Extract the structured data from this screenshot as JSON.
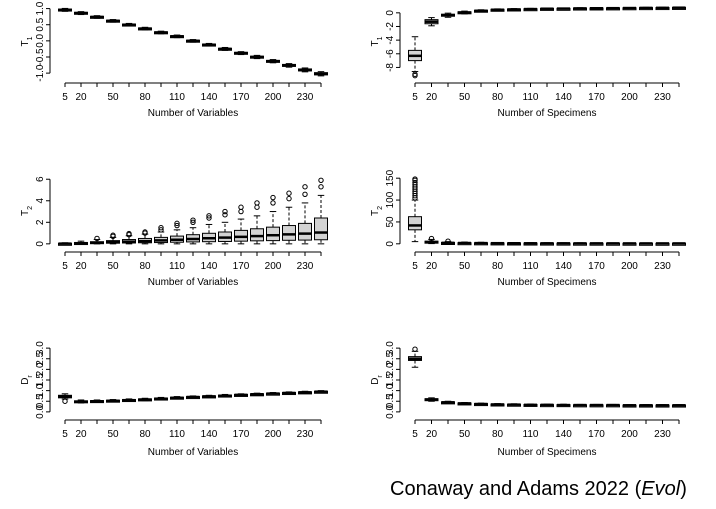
{
  "caption": {
    "text": "Conaway and Adams 2022 (",
    "journal": "Evol",
    "close": ")"
  },
  "colors": {
    "box_fill": "#d3d3d3",
    "ink": "#000000",
    "background": "#ffffff"
  },
  "chart_data": [
    {
      "id": "t1-variables",
      "type": "boxplot",
      "xlabel": "Number of Variables",
      "ylabel": "T1",
      "x_tick_labels": [
        "5",
        "20",
        "50",
        "80",
        "110",
        "140",
        "170",
        "200",
        "230"
      ],
      "x_tick_positions": [
        5,
        20,
        50,
        80,
        110,
        140,
        170,
        200,
        230
      ],
      "y_ticks": [
        "1.0",
        "0.5",
        "0.0",
        "-0.5",
        "-1.0"
      ],
      "y_tick_values": [
        1.0,
        0.5,
        0.0,
        -0.5,
        -1.0
      ],
      "ylim": [
        -1.12,
        1.08
      ],
      "categories": [
        5,
        20,
        35,
        50,
        65,
        80,
        95,
        110,
        125,
        140,
        155,
        170,
        185,
        200,
        215,
        230,
        245
      ],
      "medians": [
        0.96,
        0.86,
        0.74,
        0.62,
        0.5,
        0.38,
        0.26,
        0.14,
        0.0,
        -0.12,
        -0.25,
        -0.38,
        -0.5,
        -0.63,
        -0.76,
        -0.9,
        -1.02
      ],
      "box_half_height": [
        0.025,
        0.025,
        0.02,
        0.02,
        0.02,
        0.02,
        0.02,
        0.02,
        0.02,
        0.02,
        0.02,
        0.025,
        0.025,
        0.025,
        0.03,
        0.03,
        0.035
      ],
      "whisker_half_height": [
        0.045,
        0.045,
        0.04,
        0.04,
        0.04,
        0.04,
        0.04,
        0.04,
        0.04,
        0.04,
        0.045,
        0.045,
        0.05,
        0.05,
        0.055,
        0.06,
        0.065
      ]
    },
    {
      "id": "t1-specimens",
      "type": "boxplot",
      "xlabel": "Number of Specimens",
      "ylabel": "T1",
      "x_tick_labels": [
        "5",
        "20",
        "50",
        "80",
        "110",
        "140",
        "170",
        "200",
        "230"
      ],
      "x_tick_positions": [
        5,
        20,
        50,
        80,
        110,
        140,
        170,
        200,
        230
      ],
      "y_ticks": [
        "0",
        "-2",
        "-4",
        "-6",
        "-8"
      ],
      "y_tick_values": [
        0,
        -2,
        -4,
        -6,
        -8
      ],
      "ylim": [
        -9.4,
        1.0
      ],
      "categories": [
        5,
        20,
        35,
        50,
        65,
        80,
        95,
        110,
        125,
        140,
        155,
        170,
        185,
        200,
        215,
        230,
        245
      ],
      "medians": [
        -6.3,
        -1.3,
        -0.35,
        0.05,
        0.3,
        0.45,
        0.5,
        0.55,
        0.6,
        0.62,
        0.65,
        0.67,
        0.68,
        0.7,
        0.72,
        0.73,
        0.75
      ],
      "q1": [
        -7.0,
        -1.6,
        -0.5,
        -0.05,
        0.22,
        0.38,
        0.44,
        0.5,
        0.55,
        0.58,
        0.6,
        0.63,
        0.64,
        0.66,
        0.68,
        0.69,
        0.71
      ],
      "q3": [
        -5.5,
        -1.0,
        -0.2,
        0.15,
        0.38,
        0.52,
        0.56,
        0.6,
        0.65,
        0.66,
        0.7,
        0.71,
        0.72,
        0.74,
        0.76,
        0.77,
        0.79
      ],
      "whisker_low": [
        -8.6,
        -1.9,
        -0.65,
        -0.15,
        0.15,
        0.32,
        0.38,
        0.45,
        0.5,
        0.54,
        0.56,
        0.59,
        0.6,
        0.62,
        0.64,
        0.65,
        0.67
      ],
      "whisker_high": [
        -3.5,
        -0.7,
        -0.05,
        0.25,
        0.45,
        0.58,
        0.62,
        0.65,
        0.7,
        0.7,
        0.74,
        0.75,
        0.76,
        0.78,
        0.8,
        0.81,
        0.83
      ],
      "outliers_low": [
        [
          -9.0,
          -9.2
        ],
        [],
        [],
        [],
        [],
        [],
        [],
        [],
        [],
        [],
        [],
        [],
        [],
        [],
        [],
        [],
        []
      ]
    },
    {
      "id": "t2-variables",
      "type": "boxplot",
      "xlabel": "Number of Variables",
      "ylabel": "T2",
      "x_tick_labels": [
        "5",
        "20",
        "50",
        "80",
        "110",
        "140",
        "170",
        "200",
        "230"
      ],
      "x_tick_positions": [
        5,
        20,
        50,
        80,
        110,
        140,
        170,
        200,
        230
      ],
      "y_ticks": [
        "0",
        "2",
        "4",
        "6"
      ],
      "y_tick_values": [
        0,
        2,
        4,
        6
      ],
      "ylim": [
        -0.2,
        6.3
      ],
      "categories": [
        5,
        20,
        35,
        50,
        65,
        80,
        95,
        110,
        125,
        140,
        155,
        170,
        185,
        200,
        215,
        230,
        245
      ],
      "medians": [
        0.02,
        0.06,
        0.1,
        0.15,
        0.2,
        0.25,
        0.32,
        0.38,
        0.45,
        0.52,
        0.58,
        0.65,
        0.72,
        0.8,
        0.88,
        0.95,
        1.05
      ],
      "q1": [
        0.0,
        0.02,
        0.04,
        0.06,
        0.08,
        0.1,
        0.12,
        0.15,
        0.18,
        0.2,
        0.22,
        0.25,
        0.28,
        0.3,
        0.33,
        0.35,
        0.38
      ],
      "q3": [
        0.05,
        0.12,
        0.2,
        0.3,
        0.4,
        0.5,
        0.6,
        0.72,
        0.85,
        0.98,
        1.1,
        1.25,
        1.4,
        1.55,
        1.7,
        1.9,
        2.4
      ],
      "whisker_low": [
        0.0,
        0.0,
        0.0,
        0.0,
        0.0,
        0.0,
        0.0,
        0.0,
        0.0,
        0.0,
        0.0,
        0.0,
        0.0,
        0.0,
        0.0,
        0.0,
        0.0
      ],
      "whisker_high": [
        0.1,
        0.25,
        0.4,
        0.6,
        0.75,
        0.9,
        1.1,
        1.3,
        1.5,
        1.8,
        2.0,
        2.3,
        2.6,
        3.0,
        3.4,
        3.8,
        4.5
      ],
      "outliers_high": [
        [],
        [],
        [
          0.5
        ],
        [
          0.7,
          0.8
        ],
        [
          0.85,
          0.95
        ],
        [
          1.0,
          1.1
        ],
        [
          1.3,
          1.5
        ],
        [
          1.7,
          1.9
        ],
        [
          2.0,
          2.2
        ],
        [
          2.4,
          2.6
        ],
        [
          2.7,
          3.0
        ],
        [
          3.0,
          3.4
        ],
        [
          3.4,
          3.8
        ],
        [
          3.8,
          4.3
        ],
        [
          4.2,
          4.7
        ],
        [
          4.6,
          5.3
        ],
        [
          5.3,
          5.9
        ]
      ]
    },
    {
      "id": "t2-specimens",
      "type": "boxplot",
      "xlabel": "Number of Specimens",
      "ylabel": "T2",
      "x_tick_labels": [
        "5",
        "20",
        "50",
        "80",
        "110",
        "140",
        "170",
        "200",
        "230"
      ],
      "x_tick_positions": [
        5,
        20,
        50,
        80,
        110,
        140,
        170,
        200,
        230
      ],
      "y_ticks": [
        "0",
        "50",
        "100",
        "150"
      ],
      "y_tick_values": [
        0,
        50,
        100,
        150
      ],
      "ylim": [
        -5,
        155
      ],
      "categories": [
        5,
        20,
        35,
        50,
        65,
        80,
        95,
        110,
        125,
        140,
        155,
        170,
        185,
        200,
        215,
        230,
        245
      ],
      "medians": [
        42,
        4,
        2.2,
        1.8,
        1.6,
        1.4,
        1.3,
        1.2,
        1.1,
        1.1,
        1.0,
        1.0,
        1.0,
        0.9,
        0.9,
        0.9,
        0.9
      ],
      "q1": [
        32,
        2.5,
        1.5,
        1.2,
        1.0,
        0.9,
        0.85,
        0.8,
        0.75,
        0.7,
        0.7,
        0.7,
        0.65,
        0.65,
        0.6,
        0.6,
        0.6
      ],
      "q3": [
        62,
        6,
        3.0,
        2.5,
        2.2,
        2.0,
        1.8,
        1.7,
        1.6,
        1.5,
        1.4,
        1.4,
        1.3,
        1.3,
        1.2,
        1.2,
        1.2
      ],
      "whisker_low": [
        5,
        0.5,
        0.3,
        0.3,
        0.3,
        0.3,
        0.3,
        0.3,
        0.3,
        0.3,
        0.3,
        0.3,
        0.3,
        0.3,
        0.3,
        0.3,
        0.3
      ],
      "whisker_high": [
        100,
        10,
        5,
        4,
        3.5,
        3,
        2.8,
        2.6,
        2.4,
        2.3,
        2.2,
        2.1,
        2.0,
        2.0,
        1.9,
        1.9,
        1.9
      ],
      "outliers_high": [
        [
          105,
          110,
          115,
          120,
          125,
          130,
          135,
          140,
          145,
          148
        ],
        [
          12
        ],
        [
          6
        ],
        [],
        [],
        [],
        [],
        [],
        [],
        [],
        [],
        [],
        [],
        [],
        [],
        [],
        []
      ]
    },
    {
      "id": "dr-variables",
      "type": "boxplot",
      "xlabel": "Number of Variables",
      "ylabel": "Dr",
      "x_tick_labels": [
        "5",
        "20",
        "50",
        "80",
        "110",
        "140",
        "170",
        "200",
        "230"
      ],
      "x_tick_positions": [
        5,
        20,
        50,
        80,
        110,
        140,
        170,
        200,
        230
      ],
      "y_ticks": [
        "0.0",
        "0.5",
        "1.0",
        "1.5",
        "2.0",
        "2.5",
        "3.0"
      ],
      "y_tick_values": [
        0.0,
        0.5,
        1.0,
        1.5,
        2.0,
        2.5,
        3.0
      ],
      "ylim": [
        -0.1,
        3.1
      ],
      "categories": [
        5,
        20,
        35,
        50,
        65,
        80,
        95,
        110,
        125,
        140,
        155,
        170,
        185,
        200,
        215,
        230,
        245
      ],
      "medians": [
        0.72,
        0.48,
        0.5,
        0.52,
        0.55,
        0.58,
        0.62,
        0.66,
        0.7,
        0.73,
        0.76,
        0.8,
        0.83,
        0.86,
        0.89,
        0.92,
        0.95
      ],
      "q1": [
        0.66,
        0.45,
        0.48,
        0.5,
        0.53,
        0.56,
        0.6,
        0.64,
        0.68,
        0.71,
        0.74,
        0.78,
        0.81,
        0.84,
        0.87,
        0.9,
        0.93
      ],
      "q3": [
        0.78,
        0.52,
        0.53,
        0.55,
        0.58,
        0.61,
        0.65,
        0.69,
        0.72,
        0.75,
        0.79,
        0.82,
        0.85,
        0.88,
        0.91,
        0.94,
        0.97
      ],
      "whisker_low": [
        0.6,
        0.42,
        0.45,
        0.47,
        0.5,
        0.53,
        0.57,
        0.61,
        0.65,
        0.68,
        0.71,
        0.75,
        0.78,
        0.81,
        0.84,
        0.87,
        0.9
      ],
      "whisker_high": [
        0.85,
        0.56,
        0.56,
        0.58,
        0.61,
        0.64,
        0.68,
        0.72,
        0.75,
        0.78,
        0.82,
        0.85,
        0.88,
        0.91,
        0.94,
        0.97,
        1.0
      ],
      "outliers_low": [
        [
          0.5
        ],
        [],
        [],
        [],
        [],
        [],
        [],
        [],
        [],
        [],
        [],
        [],
        [],
        [],
        [],
        [],
        []
      ]
    },
    {
      "id": "dr-specimens",
      "type": "boxplot",
      "xlabel": "Number of Specimens",
      "ylabel": "Dr",
      "x_tick_labels": [
        "5",
        "20",
        "50",
        "80",
        "110",
        "140",
        "170",
        "200",
        "230"
      ],
      "x_tick_positions": [
        5,
        20,
        50,
        80,
        110,
        140,
        170,
        200,
        230
      ],
      "y_ticks": [
        "0.0",
        "0.5",
        "1.0",
        "1.5",
        "2.0",
        "2.5",
        "3.0"
      ],
      "y_tick_values": [
        0.0,
        0.5,
        1.0,
        1.5,
        2.0,
        2.5,
        3.0
      ],
      "ylim": [
        -0.1,
        3.1
      ],
      "categories": [
        5,
        20,
        35,
        50,
        65,
        80,
        95,
        110,
        125,
        140,
        155,
        170,
        185,
        200,
        215,
        230,
        245
      ],
      "medians": [
        2.5,
        0.58,
        0.45,
        0.4,
        0.37,
        0.35,
        0.34,
        0.33,
        0.33,
        0.32,
        0.32,
        0.32,
        0.32,
        0.31,
        0.31,
        0.31,
        0.31
      ],
      "q1": [
        2.42,
        0.55,
        0.43,
        0.38,
        0.35,
        0.34,
        0.33,
        0.32,
        0.32,
        0.31,
        0.31,
        0.31,
        0.31,
        0.3,
        0.3,
        0.3,
        0.3
      ],
      "q3": [
        2.6,
        0.62,
        0.47,
        0.42,
        0.39,
        0.37,
        0.36,
        0.35,
        0.34,
        0.34,
        0.33,
        0.33,
        0.33,
        0.32,
        0.32,
        0.32,
        0.32
      ],
      "whisker_low": [
        2.1,
        0.5,
        0.4,
        0.36,
        0.33,
        0.32,
        0.31,
        0.3,
        0.3,
        0.29,
        0.29,
        0.29,
        0.29,
        0.28,
        0.28,
        0.28,
        0.28
      ],
      "whisker_high": [
        2.85,
        0.66,
        0.5,
        0.44,
        0.41,
        0.39,
        0.38,
        0.37,
        0.36,
        0.36,
        0.35,
        0.35,
        0.35,
        0.34,
        0.34,
        0.34,
        0.34
      ],
      "outliers_high": [
        [
          2.95
        ],
        [],
        [],
        [],
        [],
        [],
        [],
        [],
        [],
        [],
        [],
        [],
        [],
        [],
        [],
        [],
        []
      ]
    }
  ]
}
